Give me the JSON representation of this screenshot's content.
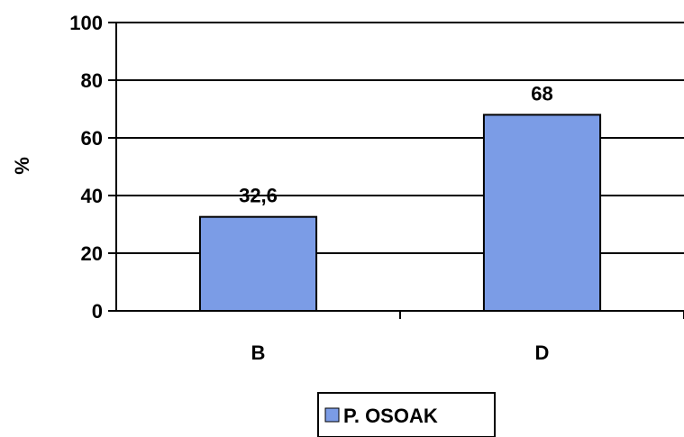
{
  "chart_data": {
    "type": "bar",
    "categories": [
      "B",
      "D"
    ],
    "series": [
      {
        "name": "P. OSOAK",
        "values": [
          32.6,
          68
        ],
        "labels": [
          "32,6",
          "68"
        ]
      }
    ],
    "title": "",
    "xlabel": "",
    "ylabel": "%",
    "ylim": [
      0,
      100
    ],
    "yticks": [
      0,
      20,
      40,
      60,
      80,
      100
    ],
    "grid": true,
    "legend": "bottom-center",
    "colors": {
      "bar": "#7B9CE6",
      "bar_border": "#000000",
      "grid": "#000000"
    }
  }
}
